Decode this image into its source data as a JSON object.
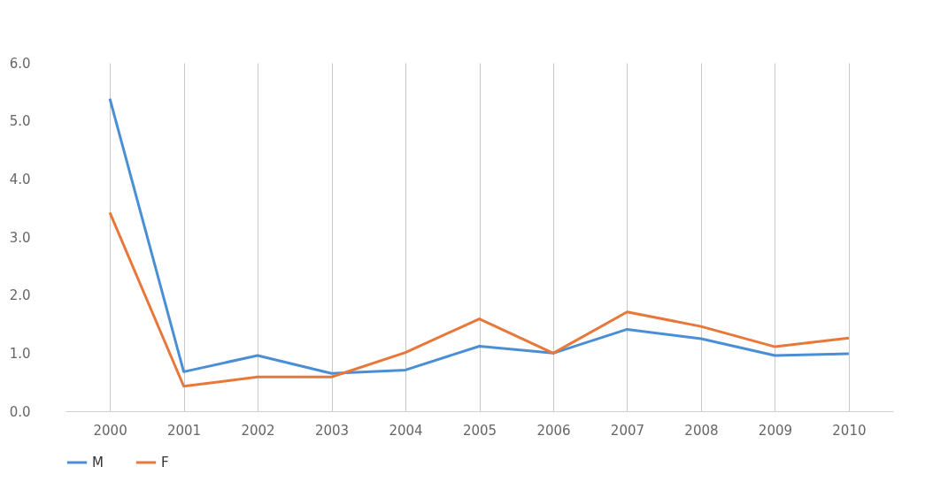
{
  "chart_data": {
    "type": "line",
    "categories": [
      "2000",
      "2001",
      "2002",
      "2003",
      "2004",
      "2005",
      "2006",
      "2007",
      "2008",
      "2009",
      "2010"
    ],
    "series": [
      {
        "name": "M",
        "color": "#4a8fd6",
        "values": [
          5.38,
          0.68,
          0.96,
          0.65,
          0.71,
          1.12,
          1.0,
          1.41,
          1.25,
          0.96,
          0.99
        ]
      },
      {
        "name": "F",
        "color": "#e8773a",
        "values": [
          3.42,
          0.43,
          0.59,
          0.59,
          1.01,
          1.59,
          1.0,
          1.71,
          1.46,
          1.11,
          1.26
        ]
      }
    ],
    "ylim": [
      0,
      6
    ],
    "yticks": [
      {
        "value": 0,
        "label": "0.0"
      },
      {
        "value": 1,
        "label": "1.0"
      },
      {
        "value": 2,
        "label": "2.0"
      },
      {
        "value": 3,
        "label": "3.0"
      },
      {
        "value": 4,
        "label": "4.0"
      },
      {
        "value": 5,
        "label": "5.0"
      },
      {
        "value": 6,
        "label": "6.0"
      }
    ],
    "grid": "x",
    "legend": "bottom",
    "marker": "none",
    "line_style": "solid"
  }
}
